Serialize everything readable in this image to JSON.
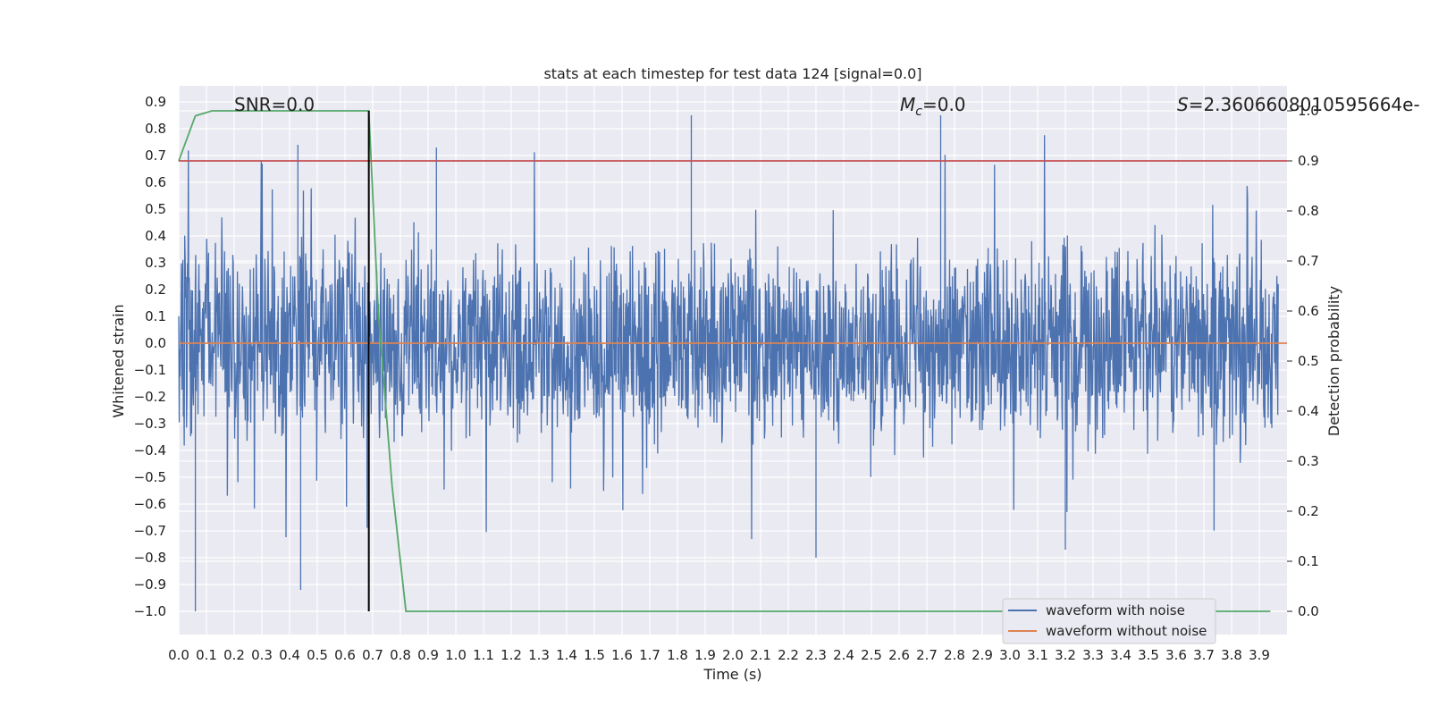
{
  "chart_data": {
    "type": "line",
    "title": "stats at each timestep for test data 124 [signal=0.0]",
    "xlabel": "Time (s)",
    "ylabel_left": "Whitened strain",
    "ylabel_right": "Detection probability",
    "xlim": [
      0.0,
      4.0
    ],
    "ylim_left": [
      -1.09,
      0.96
    ],
    "ylim_right": [
      -0.045,
      1.0
    ],
    "x_ticks": [
      0.0,
      0.1,
      0.2,
      0.3,
      0.4,
      0.5,
      0.6,
      0.7,
      0.8,
      0.9,
      1.0,
      1.1,
      1.2,
      1.3,
      1.4,
      1.5,
      1.6,
      1.7,
      1.8,
      1.9,
      2.0,
      2.1,
      2.2,
      2.3,
      2.4,
      2.5,
      2.6,
      2.7,
      2.8,
      2.9,
      3.0,
      3.1,
      3.2,
      3.3,
      3.4,
      3.5,
      3.6,
      3.7,
      3.8,
      3.9
    ],
    "x_tick_labels": [
      "0.0",
      "0.1",
      "0.2",
      "0.3",
      "0.4",
      "0.5",
      "0.6",
      "0.7",
      "0.8",
      "0.9",
      "1.0",
      "1.1",
      "1.2",
      "1.3",
      "1.4",
      "1.5",
      "1.6",
      "1.7",
      "1.8",
      "1.9",
      "2.0",
      "2.1",
      "2.2",
      "2.3",
      "2.4",
      "2.5",
      "2.6",
      "2.7",
      "2.8",
      "2.9",
      "3.0",
      "3.1",
      "3.2",
      "3.3",
      "3.4",
      "3.5",
      "3.6",
      "3.7",
      "3.8",
      "3.9"
    ],
    "y_ticks_left": [
      0.9,
      0.8,
      0.7,
      0.6,
      0.5,
      0.4,
      0.3,
      0.2,
      0.1,
      0.0,
      -0.1,
      -0.2,
      -0.3,
      -0.4,
      -0.5,
      -0.6,
      -0.7,
      -0.8,
      -0.9,
      -1.0
    ],
    "y_tick_labels_left": [
      "0.9",
      "0.8",
      "0.7",
      "0.6",
      "0.5",
      "0.4",
      "0.3",
      "0.2",
      "0.1",
      "0.0",
      "−0.1",
      "−0.2",
      "−0.3",
      "−0.4",
      "−0.5",
      "−0.6",
      "−0.7",
      "−0.8",
      "−0.9",
      "−1.0"
    ],
    "y_ticks_right": [
      0.0,
      0.1,
      0.2,
      0.3,
      0.4,
      0.5,
      0.6,
      0.7,
      0.8,
      0.9,
      1.0
    ],
    "y_tick_labels_right": [
      "0.0",
      "0.1",
      "0.2",
      "0.3",
      "0.4",
      "0.5",
      "0.6",
      "0.7",
      "0.8",
      "0.9",
      "1.0"
    ],
    "annotations": {
      "snr": "SNR=0.0",
      "mc_symbol": "M",
      "mc_subscript": "c",
      "mc_value": "=0.0",
      "s_symbol": "S",
      "s_value": "=2.360660801059566​4e-"
    },
    "series": [
      {
        "name": "waveform with noise",
        "axis": "left",
        "color": "#4c72b0",
        "description": "noisy whitened strain, amplitude envelope",
        "noise_amplitude": 0.3,
        "spike_max": 0.86,
        "spike_min": -1.0,
        "notable_peaks": [
          {
            "x": 0.06,
            "y": -1.0
          },
          {
            "x": 0.43,
            "y": 0.74
          },
          {
            "x": 0.44,
            "y": -0.92
          },
          {
            "x": 0.93,
            "y": 0.73
          },
          {
            "x": 1.85,
            "y": 0.85
          },
          {
            "x": 2.3,
            "y": -0.8
          },
          {
            "x": 2.75,
            "y": 0.85
          },
          {
            "x": 3.2,
            "y": -0.77
          }
        ]
      },
      {
        "name": "waveform without noise",
        "axis": "left",
        "color": "#dd8452",
        "x": [
          0.0,
          4.0
        ],
        "y": [
          0.0,
          0.0
        ]
      },
      {
        "name": "detection probability",
        "axis": "right",
        "color": "#55a868",
        "x": [
          0.0,
          0.06,
          0.12,
          0.2,
          0.3,
          0.4,
          0.5,
          0.6,
          0.686,
          0.72,
          0.77,
          0.82,
          1.0,
          2.0,
          3.0,
          3.94
        ],
        "y": [
          0.9,
          0.99,
          1.0,
          1.0,
          1.0,
          1.0,
          1.0,
          1.0,
          1.0,
          0.6,
          0.25,
          0.0,
          0.0,
          0.0,
          0.0,
          0.0
        ]
      },
      {
        "name": "threshold",
        "axis": "right",
        "color": "#c44e52",
        "x": [
          0.0,
          4.0
        ],
        "y": [
          0.9,
          0.9
        ]
      },
      {
        "name": "marker",
        "axis": "right",
        "color": "#000000",
        "x": [
          0.686,
          0.686
        ],
        "y": [
          0.0,
          1.0
        ]
      }
    ],
    "legend": {
      "placement": "lower-right",
      "entries": [
        {
          "label": "waveform with noise",
          "color": "#4c72b0"
        },
        {
          "label": "waveform without noise",
          "color": "#dd8452"
        }
      ]
    },
    "grid": true,
    "background_color": "#eaeaf2"
  }
}
